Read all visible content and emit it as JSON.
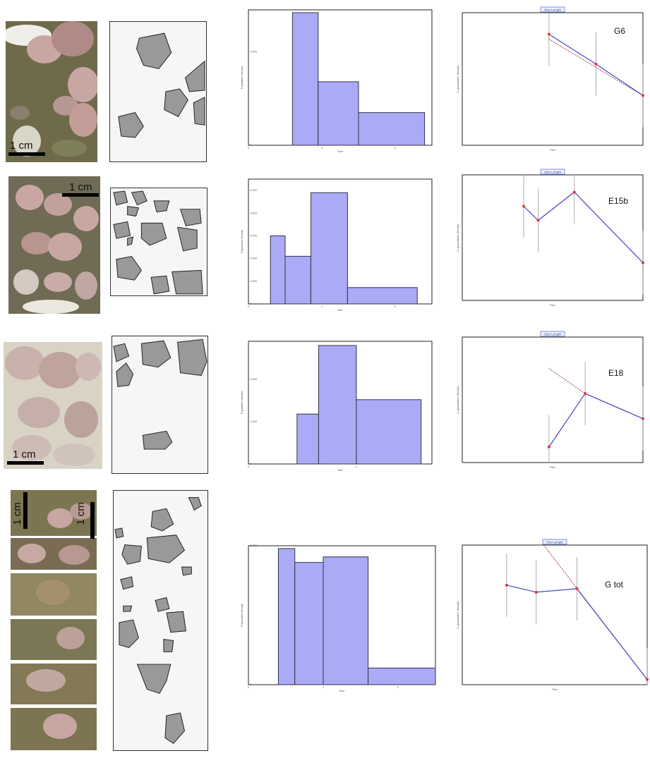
{
  "figure": {
    "rows": [
      {
        "id": "G6",
        "scale_label": "1 cm",
        "hist_ylabel": "Population density",
        "hist_xlabel": "Size",
        "hist_yticks": [
          "0",
          "1.000"
        ],
        "hist_xticks": [
          "0",
          "1",
          "2"
        ],
        "csd_title": "Size-Length",
        "csd_ylabel": "ln (population density)",
        "csd_xlabel": "Size",
        "csd_label": "G6"
      },
      {
        "id": "E15b",
        "scale_label": "1 cm",
        "hist_ylabel": "Population density",
        "hist_xlabel": "Size",
        "hist_yticks": [
          "0",
          "1.000",
          "2.000",
          "3.000",
          "4.000",
          "5.000"
        ],
        "hist_xticks": [
          "0",
          "1",
          "2"
        ],
        "csd_title": "Size-Length",
        "csd_ylabel": "ln (population density)",
        "csd_xlabel": "Size",
        "csd_label": "E15b"
      },
      {
        "id": "E18",
        "scale_label": "1 cm",
        "hist_ylabel": "Population density",
        "hist_xlabel": "Size",
        "hist_yticks": [
          "0",
          "1.000",
          "2.000"
        ],
        "hist_xticks": [
          "0",
          "1"
        ],
        "csd_title": "Size-Length",
        "csd_ylabel": "ln (population density)",
        "csd_xlabel": "Size",
        "csd_label": "E18"
      },
      {
        "id": "G tot",
        "scale_label": "1 cm",
        "scale_label_2": "1 cm",
        "hist_ylabel": "Population density",
        "hist_xlabel": "Size",
        "hist_yticks": [
          "0",
          "1.000"
        ],
        "hist_xticks": [
          "0",
          "1",
          "2"
        ],
        "csd_title": "Size-Length",
        "csd_ylabel": "ln (population density)",
        "csd_xlabel": "Size",
        "csd_label": "G tot"
      }
    ]
  },
  "chart_data": [
    {
      "type": "bar",
      "panel": "G6 histogram",
      "xlabel": "Size",
      "ylabel": "Population density",
      "xlim": [
        0,
        2.5
      ],
      "ylim": [
        0,
        1.45
      ],
      "bins": [
        {
          "x0": 0.6,
          "x1": 0.95,
          "value": 1.42
        },
        {
          "x0": 0.95,
          "x1": 1.5,
          "value": 0.68
        },
        {
          "x0": 1.5,
          "x1": 2.4,
          "value": 0.35
        }
      ]
    },
    {
      "type": "line",
      "panel": "G6 CSD",
      "title": "Size-Length",
      "xlabel": "Size",
      "ylabel": "ln (population density)",
      "xlim": [
        0,
        2.5
      ],
      "ylim": [
        -3,
        1
      ],
      "points": [
        {
          "x": 1.2,
          "y": 0.35
        },
        {
          "x": 1.85,
          "y": -0.55
        },
        {
          "x": 2.5,
          "y": -1.5
        }
      ],
      "fit": [
        {
          "x": 1.2,
          "y": 0.2
        },
        {
          "x": 2.5,
          "y": -1.5
        }
      ]
    },
    {
      "type": "bar",
      "panel": "E15b histogram",
      "xlabel": "Size",
      "ylabel": "Population density",
      "xlim": [
        0,
        2.5
      ],
      "ylim": [
        0,
        5.5
      ],
      "bins": [
        {
          "x0": 0.3,
          "x1": 0.5,
          "value": 3.0
        },
        {
          "x0": 0.5,
          "x1": 0.85,
          "value": 2.1
        },
        {
          "x0": 0.85,
          "x1": 1.35,
          "value": 4.9
        },
        {
          "x0": 1.35,
          "x1": 2.3,
          "value": 0.72
        }
      ]
    },
    {
      "type": "line",
      "panel": "E15b CSD",
      "title": "Size-Length",
      "xlabel": "Size",
      "ylabel": "ln (population density)",
      "xlim": [
        0,
        2.5
      ],
      "ylim": [
        -3,
        1
      ],
      "points": [
        {
          "x": 0.85,
          "y": 0.0
        },
        {
          "x": 1.05,
          "y": -0.45
        },
        {
          "x": 1.55,
          "y": 0.45
        },
        {
          "x": 2.5,
          "y": -1.8
        }
      ]
    },
    {
      "type": "bar",
      "panel": "E18 histogram",
      "xlabel": "Size",
      "ylabel": "Population density",
      "xlim": [
        0,
        1.7
      ],
      "ylim": [
        0,
        2.9
      ],
      "bins": [
        {
          "x0": 0.45,
          "x1": 0.65,
          "value": 1.18
        },
        {
          "x0": 0.65,
          "x1": 1.0,
          "value": 2.8
        },
        {
          "x0": 1.0,
          "x1": 1.6,
          "value": 1.52
        }
      ]
    },
    {
      "type": "line",
      "panel": "E18 CSD",
      "title": "Size-Length",
      "xlabel": "Size",
      "ylabel": "ln (population density)",
      "xlim": [
        0,
        2.5
      ],
      "ylim": [
        -3,
        1
      ],
      "points": [
        {
          "x": 1.2,
          "y": -2.5
        },
        {
          "x": 1.7,
          "y": -0.8
        },
        {
          "x": 2.5,
          "y": -1.6
        }
      ],
      "fit": [
        {
          "x": 1.2,
          "y": 0.0
        },
        {
          "x": 1.7,
          "y": -0.8
        },
        {
          "x": 2.5,
          "y": -1.6
        }
      ]
    },
    {
      "type": "bar",
      "panel": "G tot histogram",
      "xlabel": "Size",
      "ylabel": "Population density",
      "xlim": [
        0,
        2.5
      ],
      "ylim": [
        0,
        1.0
      ],
      "bins": [
        {
          "x0": 0.4,
          "x1": 0.62,
          "value": 0.98
        },
        {
          "x0": 0.62,
          "x1": 1.0,
          "value": 0.88
        },
        {
          "x0": 1.0,
          "x1": 1.6,
          "value": 0.92
        },
        {
          "x0": 1.6,
          "x1": 2.5,
          "value": 0.12
        }
      ]
    },
    {
      "type": "line",
      "panel": "G tot CSD",
      "title": "Size-Length",
      "xlabel": "Size",
      "ylabel": "ln (population density)",
      "xlim": [
        0,
        2.5
      ],
      "ylim": [
        -3,
        1
      ],
      "points": [
        {
          "x": 0.6,
          "y": -0.15
        },
        {
          "x": 1.0,
          "y": -0.35
        },
        {
          "x": 1.55,
          "y": -0.25
        },
        {
          "x": 2.5,
          "y": -2.85
        }
      ],
      "fit": [
        {
          "x": 1.1,
          "y": 1.0
        },
        {
          "x": 2.5,
          "y": -2.85
        }
      ]
    }
  ],
  "colors": {
    "bar_fill": "#aaaaf7",
    "bar_stroke": "#333344",
    "csd_line": "#4444cc",
    "csd_point": "#ee3333",
    "fit_line": "#993344",
    "rock_matrix": "#6f6a4a",
    "crystal": "#c8a7a2",
    "traced_grain": "#9a9a9a"
  }
}
